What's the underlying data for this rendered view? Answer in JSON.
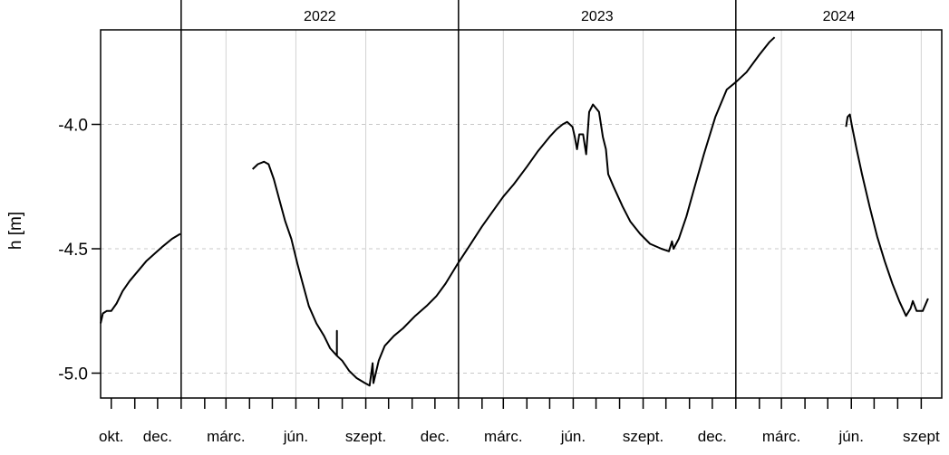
{
  "chart_data": {
    "type": "line",
    "title": "",
    "xlabel": "",
    "ylabel": "h [m]",
    "ylim": [
      -5.1,
      -3.62
    ],
    "x_range": [
      "2021-09-17",
      "2024-09-28"
    ],
    "year_headers": [
      {
        "label": "2022",
        "start": "2022-01-01",
        "end": "2023-01-01"
      },
      {
        "label": "2023",
        "start": "2023-01-01",
        "end": "2024-01-01"
      },
      {
        "label": "2024",
        "start": "2024-01-01",
        "end": "2024-09-28"
      }
    ],
    "year_separators": [
      "2022-01-01",
      "2023-01-01",
      "2024-01-01"
    ],
    "month_ticks": [
      "2021-10-01",
      "2021-11-01",
      "2021-12-01",
      "2022-01-01",
      "2022-02-01",
      "2022-03-01",
      "2022-04-01",
      "2022-05-01",
      "2022-06-01",
      "2022-07-01",
      "2022-08-01",
      "2022-09-01",
      "2022-10-01",
      "2022-11-01",
      "2022-12-01",
      "2023-01-01",
      "2023-02-01",
      "2023-03-01",
      "2023-04-01",
      "2023-05-01",
      "2023-06-01",
      "2023-07-01",
      "2023-08-01",
      "2023-09-01",
      "2023-10-01",
      "2023-11-01",
      "2023-12-01",
      "2024-01-01",
      "2024-02-01",
      "2024-03-01",
      "2024-04-01",
      "2024-05-01",
      "2024-06-01",
      "2024-07-01",
      "2024-08-01",
      "2024-09-01"
    ],
    "x_tick_labels": [
      {
        "date": "2021-10-01",
        "label": "okt."
      },
      {
        "date": "2021-12-01",
        "label": "dec."
      },
      {
        "date": "2022-03-01",
        "label": "márc."
      },
      {
        "date": "2022-06-01",
        "label": "jún."
      },
      {
        "date": "2022-09-01",
        "label": "szept."
      },
      {
        "date": "2022-12-01",
        "label": "dec."
      },
      {
        "date": "2023-03-01",
        "label": "márc."
      },
      {
        "date": "2023-06-01",
        "label": "jún."
      },
      {
        "date": "2023-09-01",
        "label": "szept."
      },
      {
        "date": "2023-12-01",
        "label": "dec."
      },
      {
        "date": "2024-03-01",
        "label": "márc."
      },
      {
        "date": "2024-06-01",
        "label": "jún."
      },
      {
        "date": "2024-09-01",
        "label": "szept"
      }
    ],
    "vertical_grid": [
      "2022-03-01",
      "2022-06-01",
      "2022-09-01",
      "2023-03-01",
      "2023-06-01",
      "2023-09-01",
      "2024-03-01",
      "2024-06-01",
      "2024-09-01"
    ],
    "y_ticks": [
      {
        "value": -5.0,
        "label": "-5.0"
      },
      {
        "value": -4.5,
        "label": "-4.5"
      },
      {
        "value": -4.0,
        "label": "-4.0"
      }
    ],
    "grid": true,
    "series": [
      {
        "segments": [
          [
            [
              "2021-09-17",
              -4.8
            ],
            [
              "2021-09-20",
              -4.76
            ],
            [
              "2021-09-25",
              -4.75
            ],
            [
              "2021-10-01",
              -4.75
            ],
            [
              "2021-10-08",
              -4.72
            ],
            [
              "2021-10-16",
              -4.67
            ],
            [
              "2021-10-25",
              -4.63
            ],
            [
              "2021-11-05",
              -4.59
            ],
            [
              "2021-11-16",
              -4.55
            ],
            [
              "2021-11-27",
              -4.52
            ],
            [
              "2021-12-08",
              -4.49
            ],
            [
              "2021-12-20",
              -4.46
            ],
            [
              "2021-12-31",
              -4.44
            ]
          ],
          [
            [
              "2022-04-05",
              -4.18
            ],
            [
              "2022-04-12",
              -4.16
            ],
            [
              "2022-04-20",
              -4.15
            ],
            [
              "2022-04-26",
              -4.16
            ],
            [
              "2022-05-03",
              -4.22
            ],
            [
              "2022-05-10",
              -4.3
            ],
            [
              "2022-05-18",
              -4.39
            ],
            [
              "2022-05-26",
              -4.46
            ],
            [
              "2022-06-03",
              -4.56
            ],
            [
              "2022-06-10",
              -4.64
            ],
            [
              "2022-06-18",
              -4.73
            ],
            [
              "2022-06-28",
              -4.8
            ],
            [
              "2022-07-08",
              -4.85
            ],
            [
              "2022-07-16",
              -4.9
            ],
            [
              "2022-07-25",
              -4.93
            ],
            [
              "2022-07-25",
              -4.83
            ],
            [
              "2022-07-25",
              -4.93
            ],
            [
              "2022-08-01",
              -4.95
            ],
            [
              "2022-08-10",
              -4.99
            ],
            [
              "2022-08-20",
              -5.02
            ],
            [
              "2022-08-31",
              -5.04
            ],
            [
              "2022-09-06",
              -5.05
            ],
            [
              "2022-09-10",
              -4.96
            ],
            [
              "2022-09-11",
              -5.04
            ],
            [
              "2022-09-18",
              -4.95
            ],
            [
              "2022-09-26",
              -4.89
            ],
            [
              "2022-10-08",
              -4.85
            ],
            [
              "2022-10-20",
              -4.82
            ],
            [
              "2022-11-05",
              -4.77
            ],
            [
              "2022-11-20",
              -4.73
            ],
            [
              "2022-12-03",
              -4.69
            ],
            [
              "2022-12-15",
              -4.64
            ],
            [
              "2022-12-31",
              -4.56
            ],
            [
              "2023-01-15",
              -4.49
            ],
            [
              "2023-02-01",
              -4.41
            ],
            [
              "2023-02-15",
              -4.35
            ],
            [
              "2023-03-01",
              -4.29
            ],
            [
              "2023-03-15",
              -4.24
            ],
            [
              "2023-04-01",
              -4.17
            ],
            [
              "2023-04-15",
              -4.11
            ],
            [
              "2023-05-01",
              -4.05
            ],
            [
              "2023-05-10",
              -4.02
            ],
            [
              "2023-05-18",
              -4.0
            ],
            [
              "2023-05-24",
              -3.99
            ],
            [
              "2023-05-31",
              -4.01
            ],
            [
              "2023-06-03",
              -4.05
            ],
            [
              "2023-06-06",
              -4.1
            ],
            [
              "2023-06-09",
              -4.04
            ],
            [
              "2023-06-14",
              -4.04
            ],
            [
              "2023-06-18",
              -4.12
            ],
            [
              "2023-06-22",
              -3.95
            ],
            [
              "2023-06-27",
              -3.92
            ],
            [
              "2023-07-05",
              -3.95
            ],
            [
              "2023-07-10",
              -4.05
            ],
            [
              "2023-07-14",
              -4.1
            ],
            [
              "2023-07-17",
              -4.2
            ],
            [
              "2023-07-24",
              -4.25
            ],
            [
              "2023-08-05",
              -4.33
            ],
            [
              "2023-08-15",
              -4.39
            ],
            [
              "2023-08-28",
              -4.44
            ],
            [
              "2023-09-10",
              -4.48
            ],
            [
              "2023-09-25",
              -4.5
            ],
            [
              "2023-10-05",
              -4.51
            ],
            [
              "2023-10-09",
              -4.47
            ],
            [
              "2023-10-11",
              -4.5
            ],
            [
              "2023-10-18",
              -4.46
            ],
            [
              "2023-10-28",
              -4.37
            ],
            [
              "2023-11-07",
              -4.26
            ],
            [
              "2023-11-20",
              -4.12
            ],
            [
              "2023-12-05",
              -3.97
            ],
            [
              "2023-12-20",
              -3.86
            ],
            [
              "2024-01-01",
              -3.83
            ],
            [
              "2024-01-15",
              -3.79
            ],
            [
              "2024-02-01",
              -3.72
            ],
            [
              "2024-02-14",
              -3.67
            ],
            [
              "2024-02-21",
              -3.65
            ]
          ],
          [
            [
              "2024-05-25",
              -4.01
            ],
            [
              "2024-05-27",
              -3.97
            ],
            [
              "2024-05-30",
              -3.96
            ],
            [
              "2024-06-02",
              -4.01
            ],
            [
              "2024-06-08",
              -4.1
            ],
            [
              "2024-06-15",
              -4.2
            ],
            [
              "2024-06-25",
              -4.33
            ],
            [
              "2024-07-05",
              -4.45
            ],
            [
              "2024-07-15",
              -4.55
            ],
            [
              "2024-07-25",
              -4.64
            ],
            [
              "2024-08-03",
              -4.71
            ],
            [
              "2024-08-12",
              -4.77
            ],
            [
              "2024-08-18",
              -4.74
            ],
            [
              "2024-08-21",
              -4.71
            ],
            [
              "2024-08-26",
              -4.75
            ],
            [
              "2024-09-03",
              -4.75
            ],
            [
              "2024-09-10",
              -4.7
            ]
          ]
        ]
      }
    ]
  }
}
